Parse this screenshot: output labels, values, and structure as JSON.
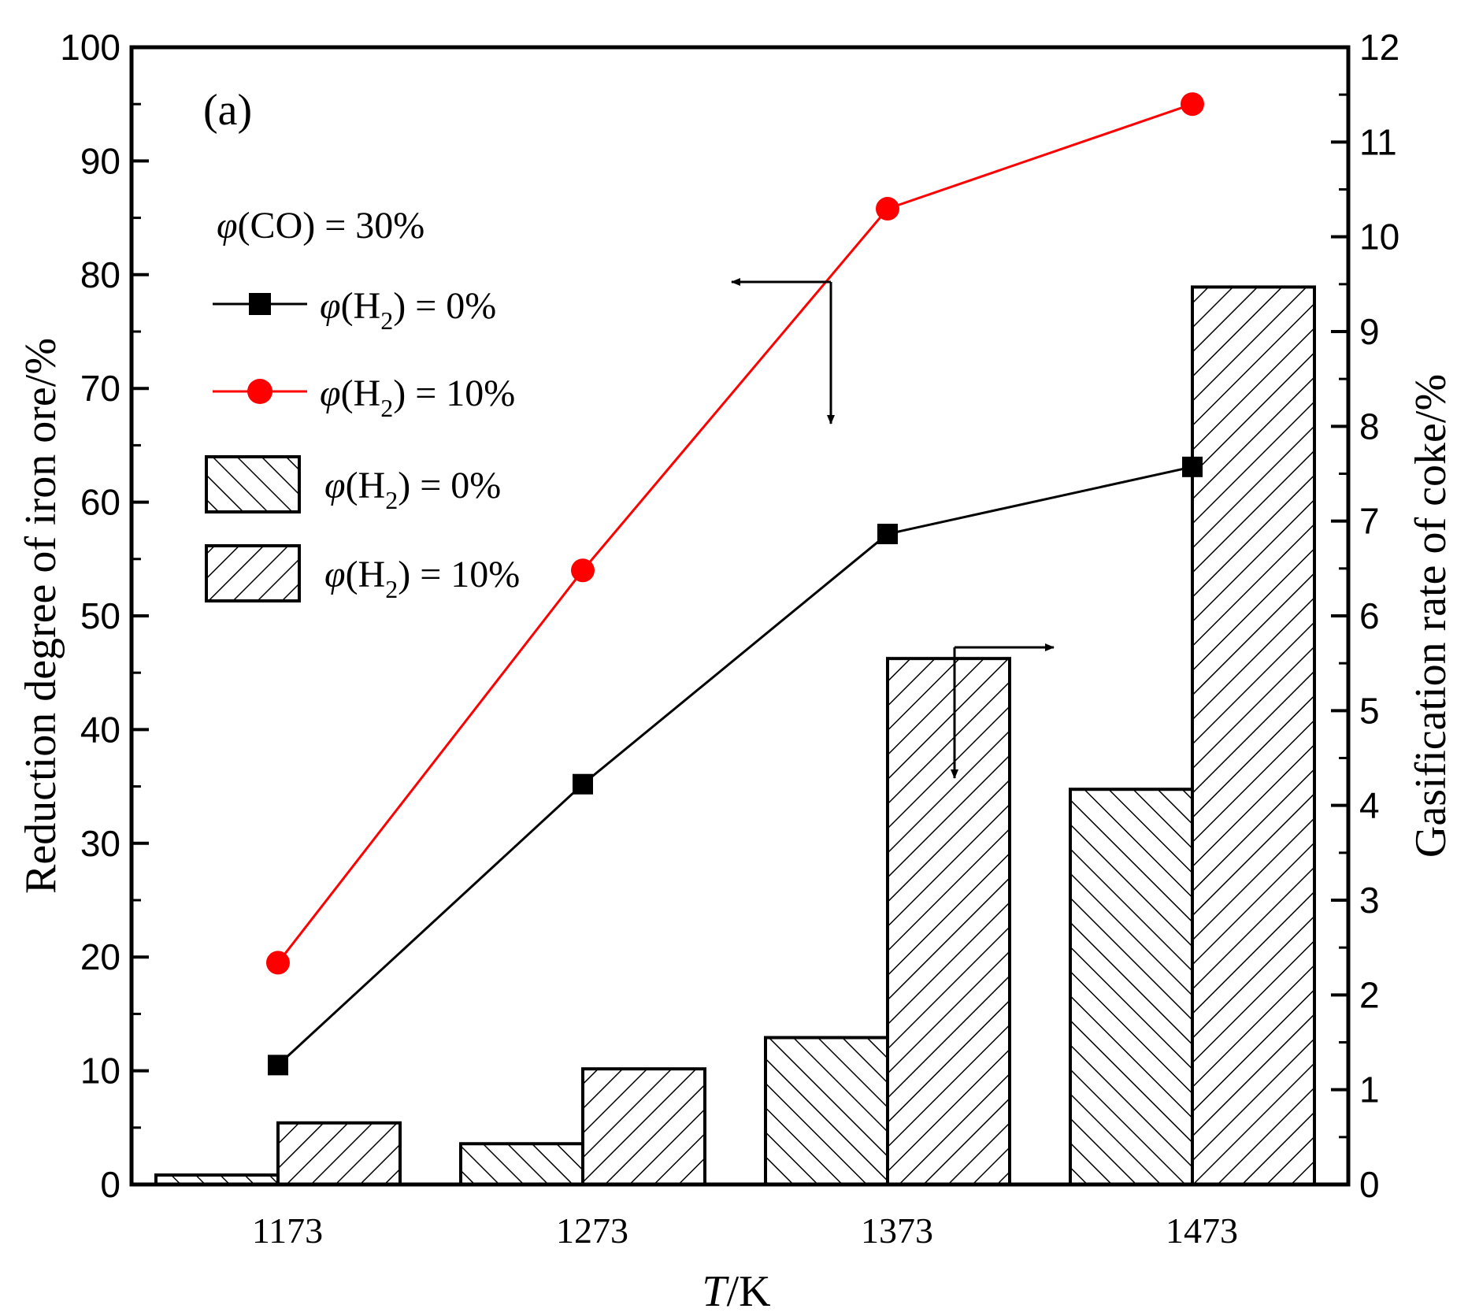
{
  "chart_data": {
    "type": "bar",
    "panel_label": "(a)",
    "categories": [
      "1173",
      "1273",
      "1373",
      "1473"
    ],
    "xlabel_italic": "T",
    "xlabel_rest": "/K",
    "ylabel": "Reduction degree of iron ore/%",
    "y2label": "Gasification rate of coke/%",
    "ylim": [
      0,
      100
    ],
    "y2lim": [
      0,
      12
    ],
    "yticks": [
      0,
      10,
      20,
      30,
      40,
      50,
      60,
      70,
      80,
      90,
      100
    ],
    "y2ticks": [
      0,
      1,
      2,
      3,
      4,
      5,
      6,
      7,
      8,
      9,
      10,
      11,
      12
    ],
    "condition": {
      "phi": "φ",
      "text": "(CO) = 30%"
    },
    "line_series": [
      {
        "name": "φ(H2) = 0%",
        "sub_label": "2",
        "label_pre": "(H",
        "label_post": ") = 0%",
        "axis": "left",
        "marker": "square",
        "color": "#000000",
        "values": [
          10.5,
          35.2,
          57.2,
          63.1
        ]
      },
      {
        "name": "φ(H2) = 10%",
        "sub_label": "2",
        "label_pre": "(H",
        "label_post": ") = 10%",
        "axis": "left",
        "marker": "circle",
        "color": "#ff0000",
        "values": [
          19.5,
          54.0,
          85.8,
          95.0
        ]
      }
    ],
    "bar_series": [
      {
        "name": "φ(H2) = 0%",
        "sub_label": "2",
        "label_pre": "(H",
        "label_post": ") = 0%",
        "axis": "right",
        "hatch": "backslash",
        "values": [
          0.1,
          0.43,
          1.55,
          4.17
        ]
      },
      {
        "name": "φ(H2) = 10%",
        "sub_label": "2",
        "label_pre": "(H",
        "label_post": ") = 10%",
        "axis": "right",
        "hatch": "slash",
        "values": [
          0.65,
          1.22,
          5.55,
          9.47
        ]
      }
    ],
    "legend_position": "top-left",
    "annotations": [
      "arrow pointing to left axis from red curve",
      "arrow pointing to right axis from bars"
    ]
  }
}
